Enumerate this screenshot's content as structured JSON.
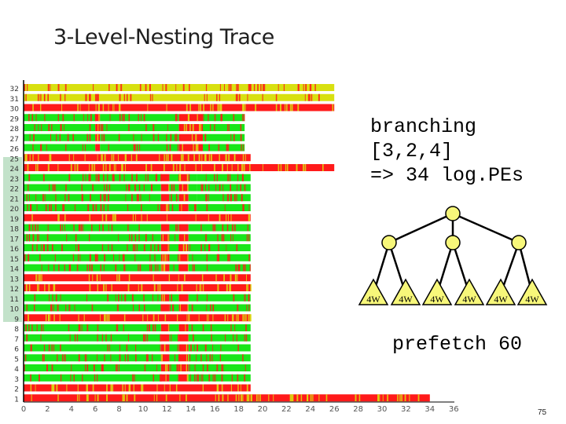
{
  "slide": {
    "title": "3-Level-Nesting Trace",
    "page_number": "75"
  },
  "note": {
    "lines": [
      "branching",
      "[3,2,4]",
      "=> 34 log.PEs"
    ],
    "prefetch": "prefetch 60"
  },
  "tree": {
    "branching": [
      3,
      2,
      4
    ],
    "leaf_label": "4W",
    "leaf_count": 6,
    "node_color": "#f7f77a"
  },
  "trace": {
    "x_ticks": [
      "0",
      "2",
      "4",
      "6",
      "8",
      "10",
      "12",
      "14",
      "16",
      "18",
      "20",
      "22",
      "24",
      "26",
      "28",
      "30",
      "32",
      "34",
      "36"
    ],
    "y_ticks": [
      "1",
      "2",
      "3",
      "4",
      "5",
      "6",
      "7",
      "8",
      "9",
      "10",
      "11",
      "12",
      "13",
      "14",
      "15",
      "16",
      "17",
      "18",
      "19",
      "20",
      "21",
      "22",
      "23",
      "24",
      "25",
      "26",
      "27",
      "28",
      "29",
      "30",
      "31",
      "32"
    ],
    "colors": {
      "busy": "#19e619",
      "idle": "#ff1a1a",
      "mixed": "#d8e010"
    }
  }
}
